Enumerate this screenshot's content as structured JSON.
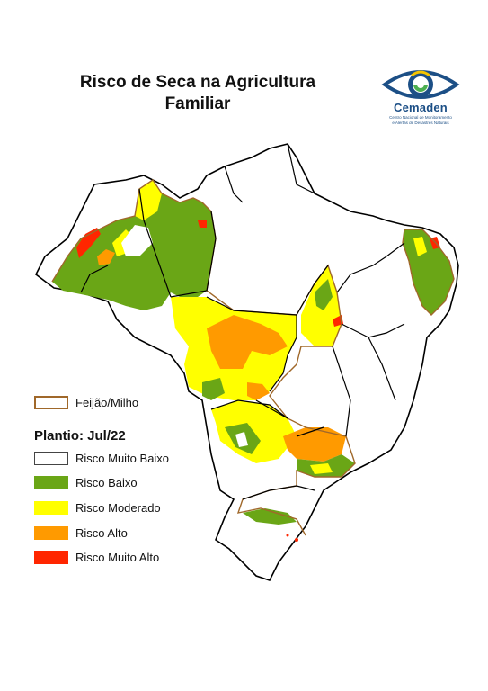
{
  "title": {
    "line1": "Risco de Seca na Agricultura",
    "line2": "Familiar"
  },
  "logo": {
    "name": "Cemaden",
    "subtitle_line1": "Centro Nacional de Monitoramento",
    "subtitle_line2": "e Alertas de Desastres Naturais"
  },
  "legend": {
    "crop_label": "Feijão/Milho",
    "crop_color": "#a0682a",
    "planting_heading": "Plantio: Jul/22",
    "classes": [
      {
        "label": "Risco Muito Baixo",
        "color": "#ffffff"
      },
      {
        "label": "Risco Baixo",
        "color": "#6aa616"
      },
      {
        "label": "Risco Moderado",
        "color": "#ffff00"
      },
      {
        "label": "Risco Alto",
        "color": "#ff9a00"
      },
      {
        "label": "Risco Muito Alto",
        "color": "#ff2600"
      }
    ]
  },
  "colors": {
    "state_border": "#000000",
    "logo_blue": "#1c4f86",
    "logo_green": "#4caf50"
  }
}
